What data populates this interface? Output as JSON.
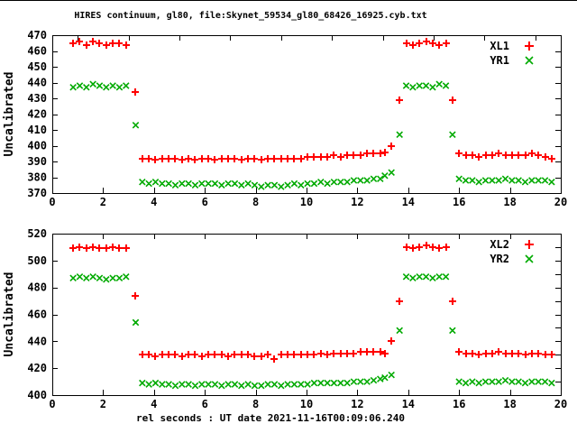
{
  "title": "HIRES continuum, gl80, file:Skynet_59534_gl80_68426_16925.cyb.txt",
  "xlabel": "rel seconds : UT date 2021-11-16T00:09:06.240",
  "colors": {
    "xl": "#ff0000",
    "yr": "#00aa00",
    "axis": "#000000",
    "background": "#ffffff"
  },
  "chart_data": [
    {
      "type": "scatter",
      "panel": "top",
      "ylabel": "Uncalibrated",
      "xlim": [
        0,
        20
      ],
      "ylim": [
        370,
        470
      ],
      "xticks": [
        0,
        2,
        4,
        6,
        8,
        10,
        12,
        14,
        16,
        18,
        20
      ],
      "x2ticks": [
        1,
        3,
        5,
        7,
        9,
        11,
        13,
        15,
        17,
        19
      ],
      "yticks": [
        370,
        380,
        390,
        400,
        410,
        420,
        430,
        440,
        450,
        460,
        470
      ],
      "yticks_right": [
        370,
        380,
        390,
        400,
        410,
        420,
        430,
        440,
        450,
        460,
        470
      ],
      "grid": false,
      "legend_position": "top-right-inside",
      "legend": [
        {
          "name": "XL1",
          "marker": "plus",
          "color": "#ff0000"
        },
        {
          "name": "YR1",
          "marker": "cross",
          "color": "#00aa00"
        }
      ],
      "x": [
        0.82,
        1.08,
        1.34,
        1.6,
        1.86,
        2.12,
        2.38,
        2.64,
        2.9,
        3.28,
        3.54,
        3.8,
        4.06,
        4.32,
        4.58,
        4.84,
        5.1,
        5.36,
        5.62,
        5.88,
        6.14,
        6.4,
        6.66,
        6.92,
        7.18,
        7.44,
        7.7,
        7.96,
        8.22,
        8.48,
        8.74,
        9.0,
        9.26,
        9.52,
        9.78,
        10.04,
        10.3,
        10.56,
        10.82,
        11.08,
        11.34,
        11.6,
        11.86,
        12.12,
        12.38,
        12.64,
        12.9,
        13.08,
        13.34,
        13.66,
        13.92,
        14.18,
        14.44,
        14.7,
        14.96,
        15.22,
        15.48,
        15.74,
        16.0,
        16.26,
        16.52,
        16.78,
        17.04,
        17.3,
        17.56,
        17.82,
        18.08,
        18.34,
        18.6,
        18.86,
        19.12,
        19.38,
        19.64
      ],
      "series": [
        {
          "name": "XL1",
          "marker": "plus",
          "color": "#ff0000",
          "values": [
            465,
            466,
            464,
            466,
            465,
            464,
            465,
            465,
            464,
            434,
            392,
            392,
            391,
            392,
            392,
            392,
            391,
            392,
            391,
            392,
            392,
            391,
            392,
            392,
            392,
            391,
            392,
            392,
            391,
            392,
            392,
            392,
            392,
            392,
            392,
            393,
            393,
            393,
            393,
            394,
            393,
            394,
            394,
            394,
            395,
            395,
            395,
            396,
            400,
            429,
            465,
            464,
            465,
            466,
            465,
            464,
            465,
            429,
            395,
            394,
            394,
            393,
            394,
            394,
            395,
            394,
            394,
            394,
            394,
            395,
            394,
            393,
            392
          ]
        },
        {
          "name": "YR1",
          "marker": "cross",
          "color": "#00aa00",
          "values": [
            437,
            438,
            437,
            439,
            438,
            437,
            438,
            437,
            438,
            413,
            377,
            376,
            377,
            376,
            376,
            375,
            376,
            376,
            375,
            376,
            376,
            376,
            375,
            376,
            376,
            375,
            376,
            375,
            374,
            375,
            375,
            374,
            375,
            376,
            375,
            376,
            376,
            377,
            376,
            377,
            377,
            377,
            378,
            378,
            378,
            379,
            379,
            381,
            383,
            407,
            438,
            437,
            438,
            438,
            437,
            439,
            438,
            407,
            379,
            378,
            378,
            377,
            378,
            378,
            378,
            379,
            378,
            378,
            377,
            378,
            378,
            378,
            377
          ]
        }
      ]
    },
    {
      "type": "scatter",
      "panel": "bottom",
      "ylabel": "Uncalibrated",
      "xlim": [
        0,
        20
      ],
      "ylim": [
        400,
        520
      ],
      "xticks": [
        0,
        2,
        4,
        6,
        8,
        10,
        12,
        14,
        16,
        18,
        20
      ],
      "x2ticks": [
        0,
        2,
        4,
        6,
        8,
        10,
        12,
        14,
        16,
        18,
        20
      ],
      "yticks": [
        400,
        420,
        440,
        460,
        480,
        500,
        520
      ],
      "yticks_right": [
        400,
        410,
        420,
        430,
        440,
        450,
        460,
        470,
        480,
        490,
        500,
        510,
        520
      ],
      "grid": false,
      "legend_position": "top-right-inside",
      "legend": [
        {
          "name": "XL2",
          "marker": "plus",
          "color": "#ff0000"
        },
        {
          "name": "YR2",
          "marker": "cross",
          "color": "#00aa00"
        }
      ],
      "x": [
        0.82,
        1.08,
        1.34,
        1.6,
        1.86,
        2.12,
        2.38,
        2.64,
        2.9,
        3.28,
        3.54,
        3.8,
        4.06,
        4.32,
        4.58,
        4.84,
        5.1,
        5.36,
        5.62,
        5.88,
        6.14,
        6.4,
        6.66,
        6.92,
        7.18,
        7.44,
        7.7,
        7.96,
        8.22,
        8.48,
        8.74,
        9.0,
        9.26,
        9.52,
        9.78,
        10.04,
        10.3,
        10.56,
        10.82,
        11.08,
        11.34,
        11.6,
        11.86,
        12.12,
        12.38,
        12.64,
        12.9,
        13.08,
        13.34,
        13.66,
        13.92,
        14.18,
        14.44,
        14.7,
        14.96,
        15.22,
        15.48,
        15.74,
        16.0,
        16.26,
        16.52,
        16.78,
        17.04,
        17.3,
        17.56,
        17.82,
        18.08,
        18.34,
        18.6,
        18.86,
        19.12,
        19.38,
        19.64
      ],
      "series": [
        {
          "name": "XL2",
          "marker": "plus",
          "color": "#ff0000",
          "values": [
            509,
            510,
            509,
            510,
            509,
            509,
            510,
            509,
            509,
            474,
            430,
            430,
            429,
            430,
            430,
            430,
            429,
            430,
            430,
            429,
            430,
            430,
            430,
            429,
            430,
            430,
            430,
            429,
            429,
            430,
            427,
            430,
            430,
            430,
            430,
            430,
            430,
            431,
            430,
            431,
            431,
            431,
            431,
            432,
            432,
            432,
            432,
            431,
            440,
            470,
            510,
            509,
            510,
            511,
            510,
            509,
            510,
            470,
            432,
            431,
            431,
            430,
            431,
            431,
            432,
            431,
            431,
            431,
            430,
            431,
            431,
            430,
            430
          ]
        },
        {
          "name": "YR2",
          "marker": "cross",
          "color": "#00aa00",
          "values": [
            487,
            488,
            487,
            488,
            487,
            486,
            487,
            487,
            488,
            454,
            409,
            408,
            409,
            408,
            408,
            407,
            408,
            408,
            407,
            408,
            408,
            408,
            407,
            408,
            408,
            407,
            408,
            407,
            407,
            408,
            408,
            407,
            408,
            408,
            408,
            408,
            409,
            409,
            409,
            409,
            409,
            409,
            410,
            410,
            410,
            411,
            412,
            413,
            415,
            448,
            488,
            487,
            488,
            488,
            487,
            488,
            488,
            448,
            410,
            409,
            410,
            409,
            410,
            410,
            410,
            411,
            410,
            410,
            409,
            410,
            410,
            410,
            409
          ]
        }
      ]
    }
  ]
}
